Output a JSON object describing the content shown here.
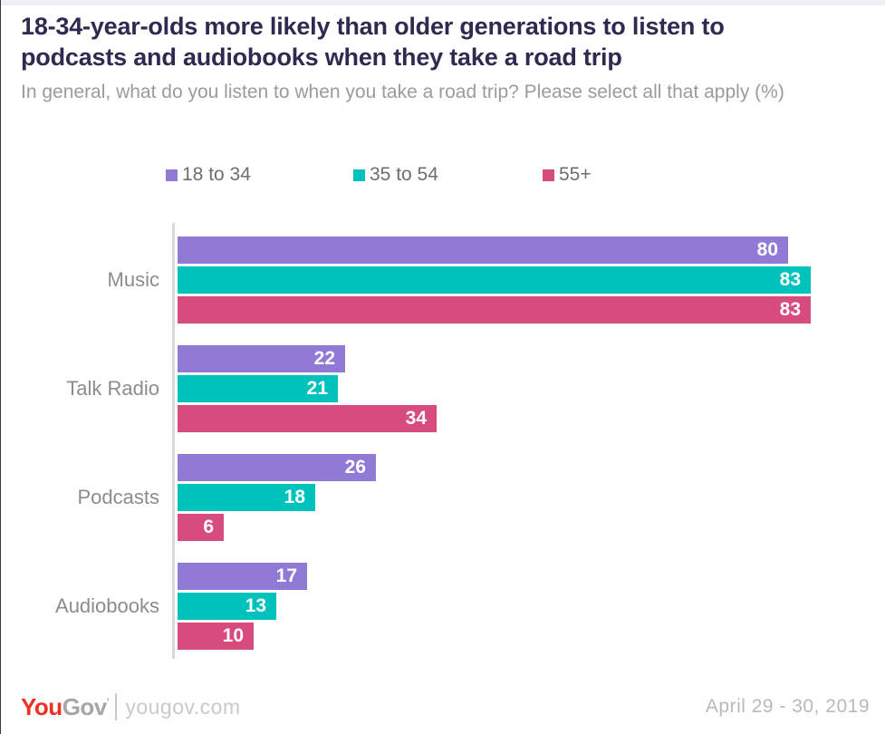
{
  "header": {
    "title": "18-34-year-olds more likely than older generations to listen to podcasts and audiobooks when they take a road trip",
    "subtitle": "In general, what do you listen to when you take a road trip? Please select all that apply (%)"
  },
  "chart_data": {
    "type": "bar",
    "orientation": "horizontal",
    "title": "18-34-year-olds more likely than older generations to listen to podcasts and audiobooks when they take a road trip",
    "subtitle": "In general, what do you listen to when you take a road trip? Please select all that apply (%)",
    "categories": [
      "Music",
      "Talk Radio",
      "Podcasts",
      "Audiobooks"
    ],
    "series": [
      {
        "name": "18 to 34",
        "color": "#9179D6",
        "values": [
          80,
          22,
          26,
          17
        ]
      },
      {
        "name": "35 to 54",
        "color": "#00C2BD",
        "values": [
          83,
          21,
          18,
          13
        ]
      },
      {
        "name": "55+",
        "color": "#D84B7D",
        "values": [
          83,
          34,
          6,
          10
        ]
      }
    ],
    "value_unit": "%",
    "xlim": [
      0,
      90
    ],
    "grid": false,
    "legend_position": "top",
    "value_labels": "inside-end"
  },
  "footer": {
    "logo_you": "You",
    "logo_gov": "Gov",
    "logo_trademark": "’",
    "logo_site": "yougov.com",
    "date": "April 29 - 30, 2019"
  },
  "colors": {
    "accent_strip": "#EEEEF4",
    "title_text": "#2F2A4F",
    "subtitle_text": "#9B9B9B",
    "category_label": "#8C8C8C",
    "legend_text": "#6E6E6E",
    "axis_line": "#D9D9D9",
    "bar_value_text": "#FFFFFF",
    "logo_red": "#ED3124",
    "logo_gray": "#A6A6A6"
  }
}
